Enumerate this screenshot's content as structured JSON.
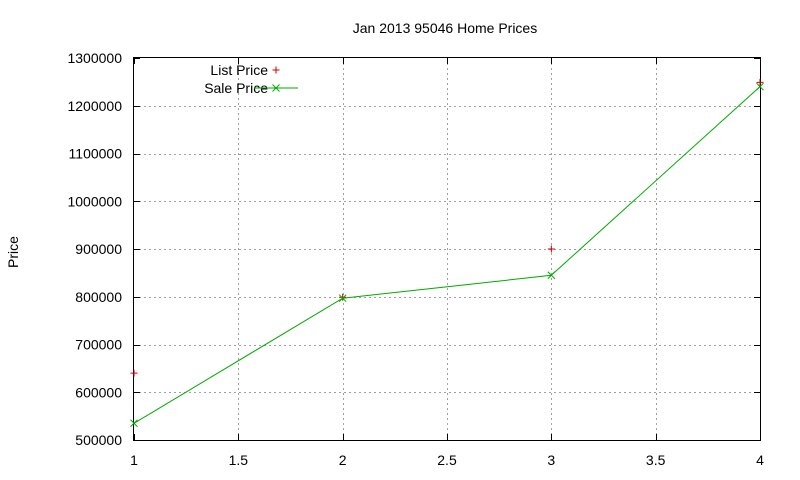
{
  "chart_data": {
    "type": "line",
    "title": "Jan 2013 95046 Home Prices",
    "xlabel": "",
    "ylabel": "Price",
    "xlim": [
      1,
      4
    ],
    "ylim": [
      500000,
      1300000
    ],
    "xticks": [
      1,
      1.5,
      2,
      2.5,
      3,
      3.5,
      4
    ],
    "xtick_labels": [
      "1",
      "1.5",
      "2",
      "2.5",
      "3",
      "3.5",
      "4"
    ],
    "yticks": [
      500000,
      600000,
      700000,
      800000,
      900000,
      1000000,
      1100000,
      1200000,
      1300000
    ],
    "ytick_labels": [
      "500000",
      "600000",
      "700000",
      "800000",
      "900000",
      "1000000",
      "1100000",
      "1200000",
      "1300000"
    ],
    "grid": true,
    "legend_position": "top-left",
    "series": [
      {
        "name": "List Price",
        "style": "points",
        "marker": "plus",
        "color": "#cc0000",
        "x": [
          1,
          2,
          3,
          4
        ],
        "y": [
          640000,
          799000,
          900000,
          1249000
        ]
      },
      {
        "name": "Sale Price",
        "style": "linespoints",
        "marker": "cross",
        "color": "#00aa00",
        "x": [
          1,
          2,
          3,
          4
        ],
        "y": [
          535000,
          797000,
          845000,
          1240000
        ]
      }
    ]
  }
}
